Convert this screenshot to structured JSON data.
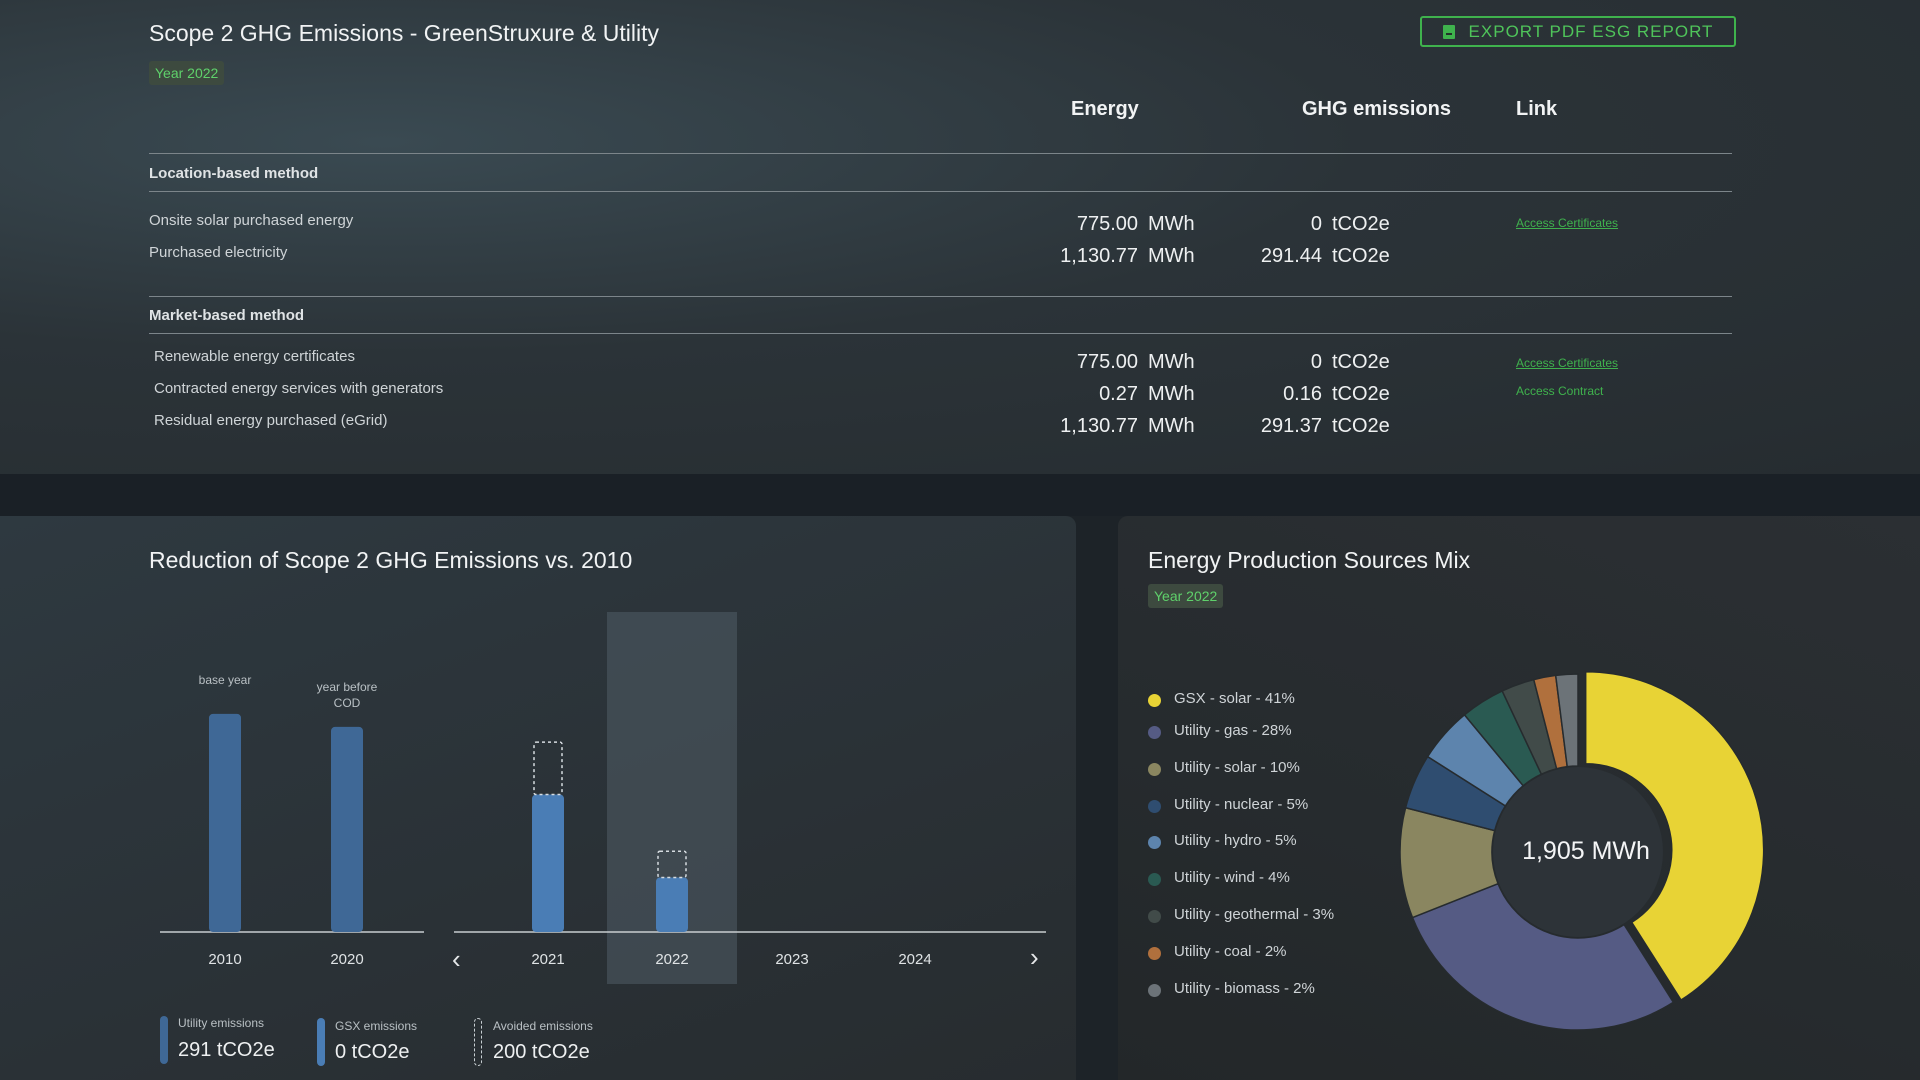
{
  "header": {
    "title": "Scope 2 GHG Emissions - GreenStruxure & Utility",
    "year_badge": "Year 2022",
    "export_label": "EXPORT PDF ESG REPORT",
    "export_icon": "pdf-icon"
  },
  "table": {
    "columns": {
      "energy": "Energy",
      "ghg": "GHG emissions",
      "link": "Link"
    },
    "location": {
      "label": "Location-based method",
      "rows": [
        {
          "label": "Onsite solar purchased energy",
          "energy": "775.00",
          "energy_unit": "MWh",
          "ghg": "0",
          "ghg_unit": "tCO2e",
          "link": "Access Certificates"
        },
        {
          "label": "Purchased electricity",
          "energy": "1,130.77",
          "energy_unit": "MWh",
          "ghg": "291.44",
          "ghg_unit": "tCO2e",
          "link": ""
        }
      ]
    },
    "market": {
      "label": "Market-based method",
      "rows": [
        {
          "label": "Renewable energy certificates",
          "energy": "775.00",
          "energy_unit": "MWh",
          "ghg": "0",
          "ghg_unit": "tCO2e",
          "link": "Access Certificates"
        },
        {
          "label": "Contracted energy services with generators",
          "energy": "0.27",
          "energy_unit": "MWh",
          "ghg": "0.16",
          "ghg_unit": "tCO2e",
          "link": "Access Contract"
        },
        {
          "label": "Residual energy purchased (eGrid)",
          "energy": "1,130.77",
          "energy_unit": "MWh",
          "ghg": "291.37",
          "ghg_unit": "tCO2e",
          "link": ""
        }
      ]
    }
  },
  "reduction_panel": {
    "title": "Reduction of Scope 2 GHG Emissions vs. 2010",
    "prev_icon": "chevron-left-icon",
    "next_icon": "chevron-right-icon",
    "legend": [
      {
        "title": "Utility emissions",
        "value": "291 tCO2e",
        "color": "#3f6896"
      },
      {
        "title": "GSX emissions",
        "value": "0 tCO2e",
        "color": "#4a7db5"
      },
      {
        "title": "Avoided emissions",
        "value": "200 tCO2e",
        "color": "dashed"
      }
    ]
  },
  "mix_panel": {
    "title": "Energy Production Sources Mix",
    "year_badge": "Year 2022",
    "center_label": "1,905 MWh"
  },
  "chart_data": [
    {
      "type": "bar",
      "title": "Reduction of Scope 2 GHG Emissions vs. 2010",
      "categories": [
        "2010",
        "2020",
        "2021",
        "2022",
        "2023",
        "2024"
      ],
      "annotations": {
        "2010": "base year",
        "2020": "year before COD"
      },
      "selected_category": "2022",
      "series": [
        {
          "name": "Utility emissions",
          "values": [
            100,
            94,
            63,
            25,
            null,
            null
          ]
        },
        {
          "name": "Avoided emissions",
          "values": [
            null,
            null,
            24,
            12,
            null,
            null
          ]
        }
      ],
      "ylim": [
        0,
        110
      ]
    },
    {
      "type": "pie",
      "title": "Energy Production Sources Mix",
      "center_label": "1,905 MWh",
      "slices": [
        {
          "label": "GSX - solar - 41%",
          "value": 41,
          "color": "#e8d335"
        },
        {
          "label": "Utility - gas - 28%",
          "value": 28,
          "color": "#555b84"
        },
        {
          "label": "Utility - solar - 10%",
          "value": 10,
          "color": "#8a8660"
        },
        {
          "label": "Utility - nuclear - 5%",
          "value": 5,
          "color": "#2f4d70"
        },
        {
          "label": "Utility - hydro - 5%",
          "value": 5,
          "color": "#5d84ad"
        },
        {
          "label": "Utility - wind - 4%",
          "value": 4,
          "color": "#2a5a52"
        },
        {
          "label": "Utility - geothermal - 3%",
          "value": 3,
          "color": "#414b49"
        },
        {
          "label": "Utility - coal - 2%",
          "value": 2,
          "color": "#b0703d"
        },
        {
          "label": "Utility - biomass - 2%",
          "value": 2,
          "color": "#6c7378"
        }
      ]
    }
  ]
}
